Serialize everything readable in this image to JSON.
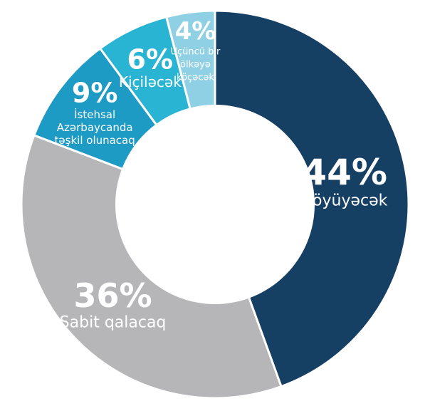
{
  "chart_data": {
    "type": "pie",
    "donut": true,
    "slices": [
      {
        "value": 44,
        "value_label": "44%",
        "label_lines": [
          "Böyüyəcək"
        ],
        "color": "#163f64"
      },
      {
        "value": 36,
        "value_label": "36%",
        "label_lines": [
          "Sabit qalacaq"
        ],
        "color": "#b6b6b9"
      },
      {
        "value": 9,
        "value_label": "9%",
        "label_lines": [
          "İstehsal",
          "Azərbaycanda",
          "təşkil olunacaq"
        ],
        "color": "#1e9bc4"
      },
      {
        "value": 6,
        "value_label": "6%",
        "label_lines": [
          "Kiçiləcək"
        ],
        "color": "#2ab4d4"
      },
      {
        "value": 4,
        "value_label": "4%",
        "label_lines": [
          "Üçüncü bir",
          "ölkəyə",
          "köçəcək"
        ],
        "color": "#8fd0e4"
      }
    ]
  }
}
